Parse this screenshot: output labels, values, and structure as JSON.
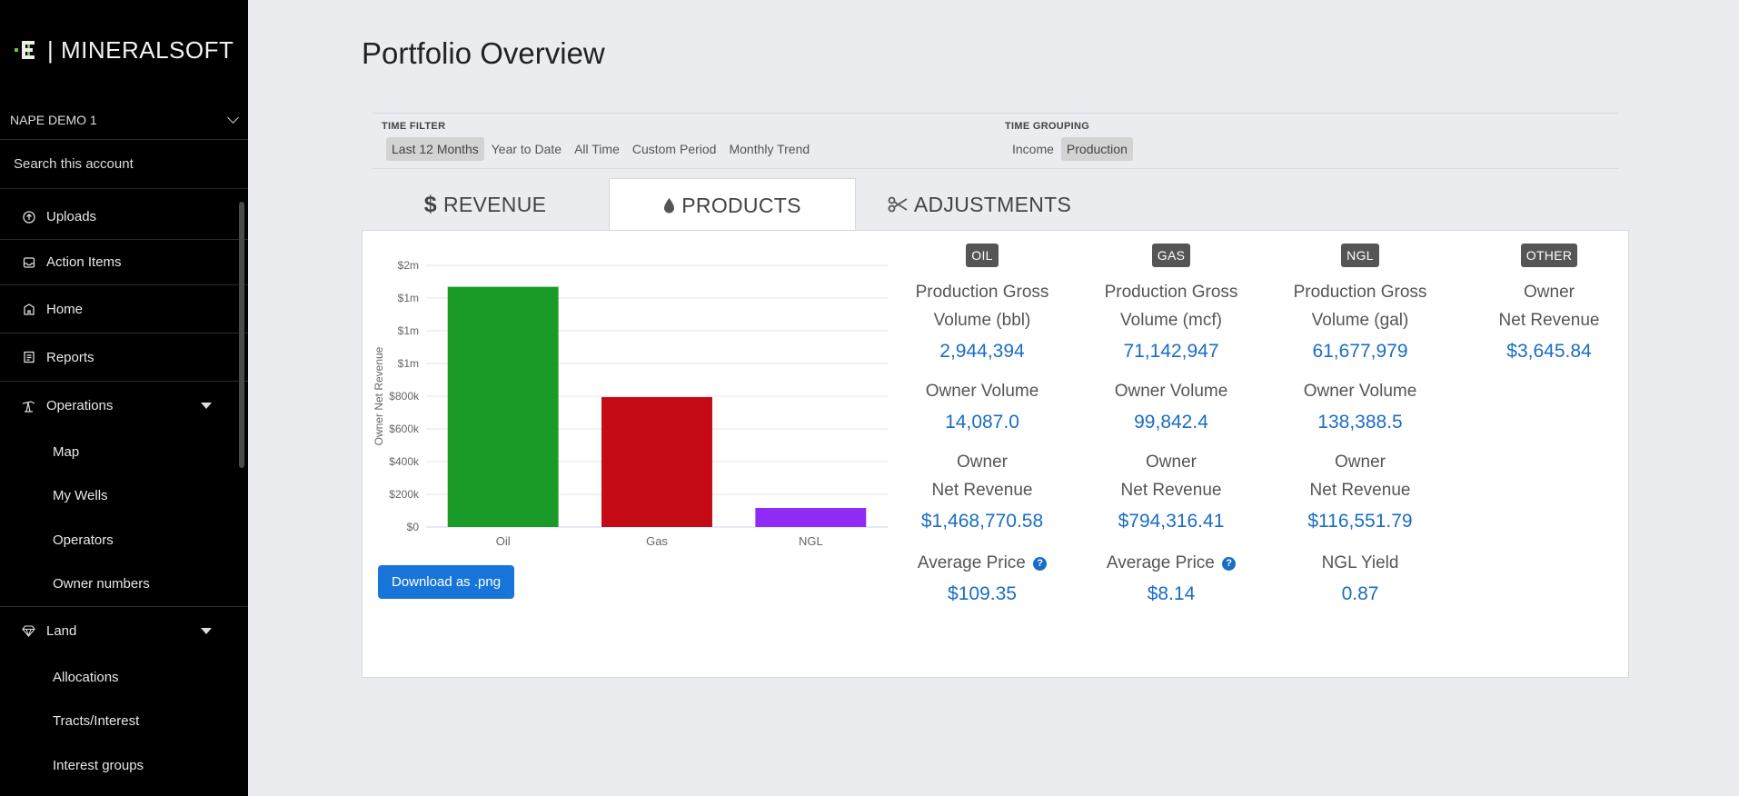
{
  "app": {
    "brand": "| MINERALSOFT"
  },
  "sidebar": {
    "account": "NAPE DEMO 1",
    "search": "Search this account",
    "items": [
      {
        "label": "Uploads",
        "icon": "upload-icon"
      },
      {
        "label": "Action Items",
        "icon": "inbox-icon"
      },
      {
        "label": "Home",
        "icon": "home-icon"
      },
      {
        "label": "Reports",
        "icon": "reports-icon"
      },
      {
        "label": "Operations",
        "icon": "pumpjack-icon"
      },
      {
        "label": "Land",
        "icon": "diamond-icon"
      }
    ],
    "operations_sub": [
      "Map",
      "My Wells",
      "Operators",
      "Owner numbers"
    ],
    "land_sub": [
      "Allocations",
      "Tracts/Interest",
      "Interest groups"
    ]
  },
  "page": {
    "title": "Portfolio Overview"
  },
  "filters": {
    "time_filter_label": "TIME FILTER",
    "time_filter": [
      "Last 12 Months",
      "Year to Date",
      "All Time",
      "Custom Period",
      "Monthly Trend"
    ],
    "time_filter_selected": "Last 12 Months",
    "time_grouping_label": "TIME GROUPING",
    "time_grouping": [
      "Income",
      "Production"
    ],
    "time_grouping_selected": "Production"
  },
  "tabs": [
    {
      "label": "REVENUE",
      "icon": "dollar-icon"
    },
    {
      "label": "PRODUCTS",
      "icon": "droplet-icon",
      "active": true
    },
    {
      "label": "ADJUSTMENTS",
      "icon": "scissors-icon"
    }
  ],
  "chart_data": {
    "type": "bar",
    "categories": [
      "Oil",
      "Gas",
      "NGL"
    ],
    "values": [
      1468770.58,
      794316.41,
      116551.79
    ],
    "colors": [
      "#1a9a26",
      "#c40a14",
      "#8f2bf5"
    ],
    "ylabel": "Owner Net Revenue",
    "ylim": [
      0,
      1600000
    ],
    "ytick_labels": [
      "$0",
      "$200k",
      "$400k",
      "$600k",
      "$800k",
      "$1m",
      "$1m",
      "$1m",
      "$2m"
    ],
    "grid": true
  },
  "download_label": "Download as .png",
  "stats": {
    "oil": {
      "badge": "OIL",
      "label1a": "Production Gross",
      "label1b": "Volume (bbl)",
      "value1": "2,944,394",
      "label2": "Owner Volume",
      "value2": "14,087.0",
      "label3a": "Owner",
      "label3b": "Net Revenue",
      "value3": "$1,468,770.58",
      "label4": "Average Price",
      "value4": "$109.35"
    },
    "gas": {
      "badge": "GAS",
      "label1a": "Production Gross",
      "label1b": "Volume (mcf)",
      "value1": "71,142,947",
      "label2": "Owner Volume",
      "value2": "99,842.4",
      "label3a": "Owner",
      "label3b": "Net Revenue",
      "value3": "$794,316.41",
      "label4": "Average Price",
      "value4": "$8.14"
    },
    "ngl": {
      "badge": "NGL",
      "label1a": "Production Gross",
      "label1b": "Volume (gal)",
      "value1": "61,677,979",
      "label2": "Owner Volume",
      "value2": "138,388.5",
      "label3a": "Owner",
      "label3b": "Net Revenue",
      "value3": "$116,551.79",
      "label4": "NGL Yield",
      "value4": "0.87"
    },
    "other": {
      "badge": "OTHER",
      "label1a": "Owner",
      "label1b": "Net Revenue",
      "value1": "$3,645.84"
    },
    "help_glyph": "?"
  }
}
